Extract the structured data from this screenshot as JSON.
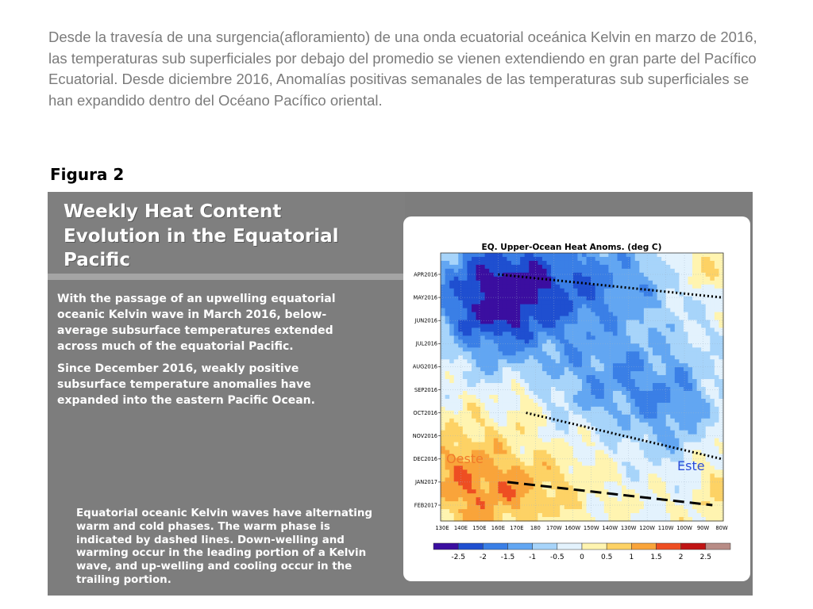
{
  "intro_text": "Desde la travesía de una surgencia(afloramiento) de una onda ecuatorial  oceánica Kelvin  en marzo de 2016, las temperaturas sub superficiales  por debajo del promedio  se vienen extendiendo en gran parte del Pacífico Ecuatorial. Desde diciembre 2016,  Anomalías positivas semanales de las temperaturas sub superficiales se han expandido dentro del Océano Pacífico oriental.",
  "figure_label": "Figura 2",
  "slide": {
    "title": "Weekly Heat Content\nEvolution in the Equatorial\nPacific",
    "body_1": "With the passage of an upwelling equatorial oceanic Kelvin wave in March 2016, below-average subsurface temperatures extended across much of the equatorial Pacific.",
    "body_2": "Since December 2016, weakly positive subsurface temperature anomalies have expanded into the eastern Pacific Ocean.",
    "footnote": "Equatorial oceanic Kelvin waves have alternating warm and cold phases. The warm phase is indicated by dashed lines. Down-welling and warming occur in the leading portion of a Kelvin wave, and up-welling and cooling occur in the trailing portion."
  },
  "chart_data": {
    "type": "heatmap",
    "title": "EQ. Upper-Ocean Heat Anoms. (deg C)",
    "x_ticks": [
      "130E",
      "140E",
      "150E",
      "160E",
      "170E",
      "180",
      "170W",
      "160W",
      "150W",
      "140W",
      "130W",
      "120W",
      "110W",
      "100W",
      "90W",
      "80W"
    ],
    "y_ticks": [
      "APR2016",
      "MAY2016",
      "JUN2016",
      "JUL2016",
      "AUG2016",
      "SEP2016",
      "OCT2016",
      "NOV2016",
      "DEC2016",
      "JAN2017",
      "FEB2017"
    ],
    "colorbar_ticks": [
      "-2.5",
      "-2",
      "-1.5",
      "-1",
      "-0.5",
      "0",
      "0.5",
      "1",
      "1.5",
      "2",
      "2.5"
    ],
    "colorbar_colors": [
      "#3b0ea0",
      "#1f4fd0",
      "#3a7fe6",
      "#62a6f2",
      "#a7d4fa",
      "#e3f2fd",
      "#fff4b0",
      "#fdd265",
      "#f9a43a",
      "#ee4e22",
      "#c01414",
      "#b88c86"
    ],
    "annotations": {
      "west": "Oeste",
      "east": "Este"
    },
    "lines": [
      {
        "style": "dotted",
        "from": [
          "160E",
          "APR2016"
        ],
        "to": [
          "80W",
          "MAY2016"
        ]
      },
      {
        "style": "dotted",
        "from": [
          "175E",
          "OCT2016"
        ],
        "to": [
          "80W",
          "DEC2016"
        ]
      },
      {
        "style": "dashed",
        "from": [
          "165E",
          "JAN2017"
        ],
        "to": [
          "85W",
          "FEB2017"
        ]
      }
    ]
  }
}
